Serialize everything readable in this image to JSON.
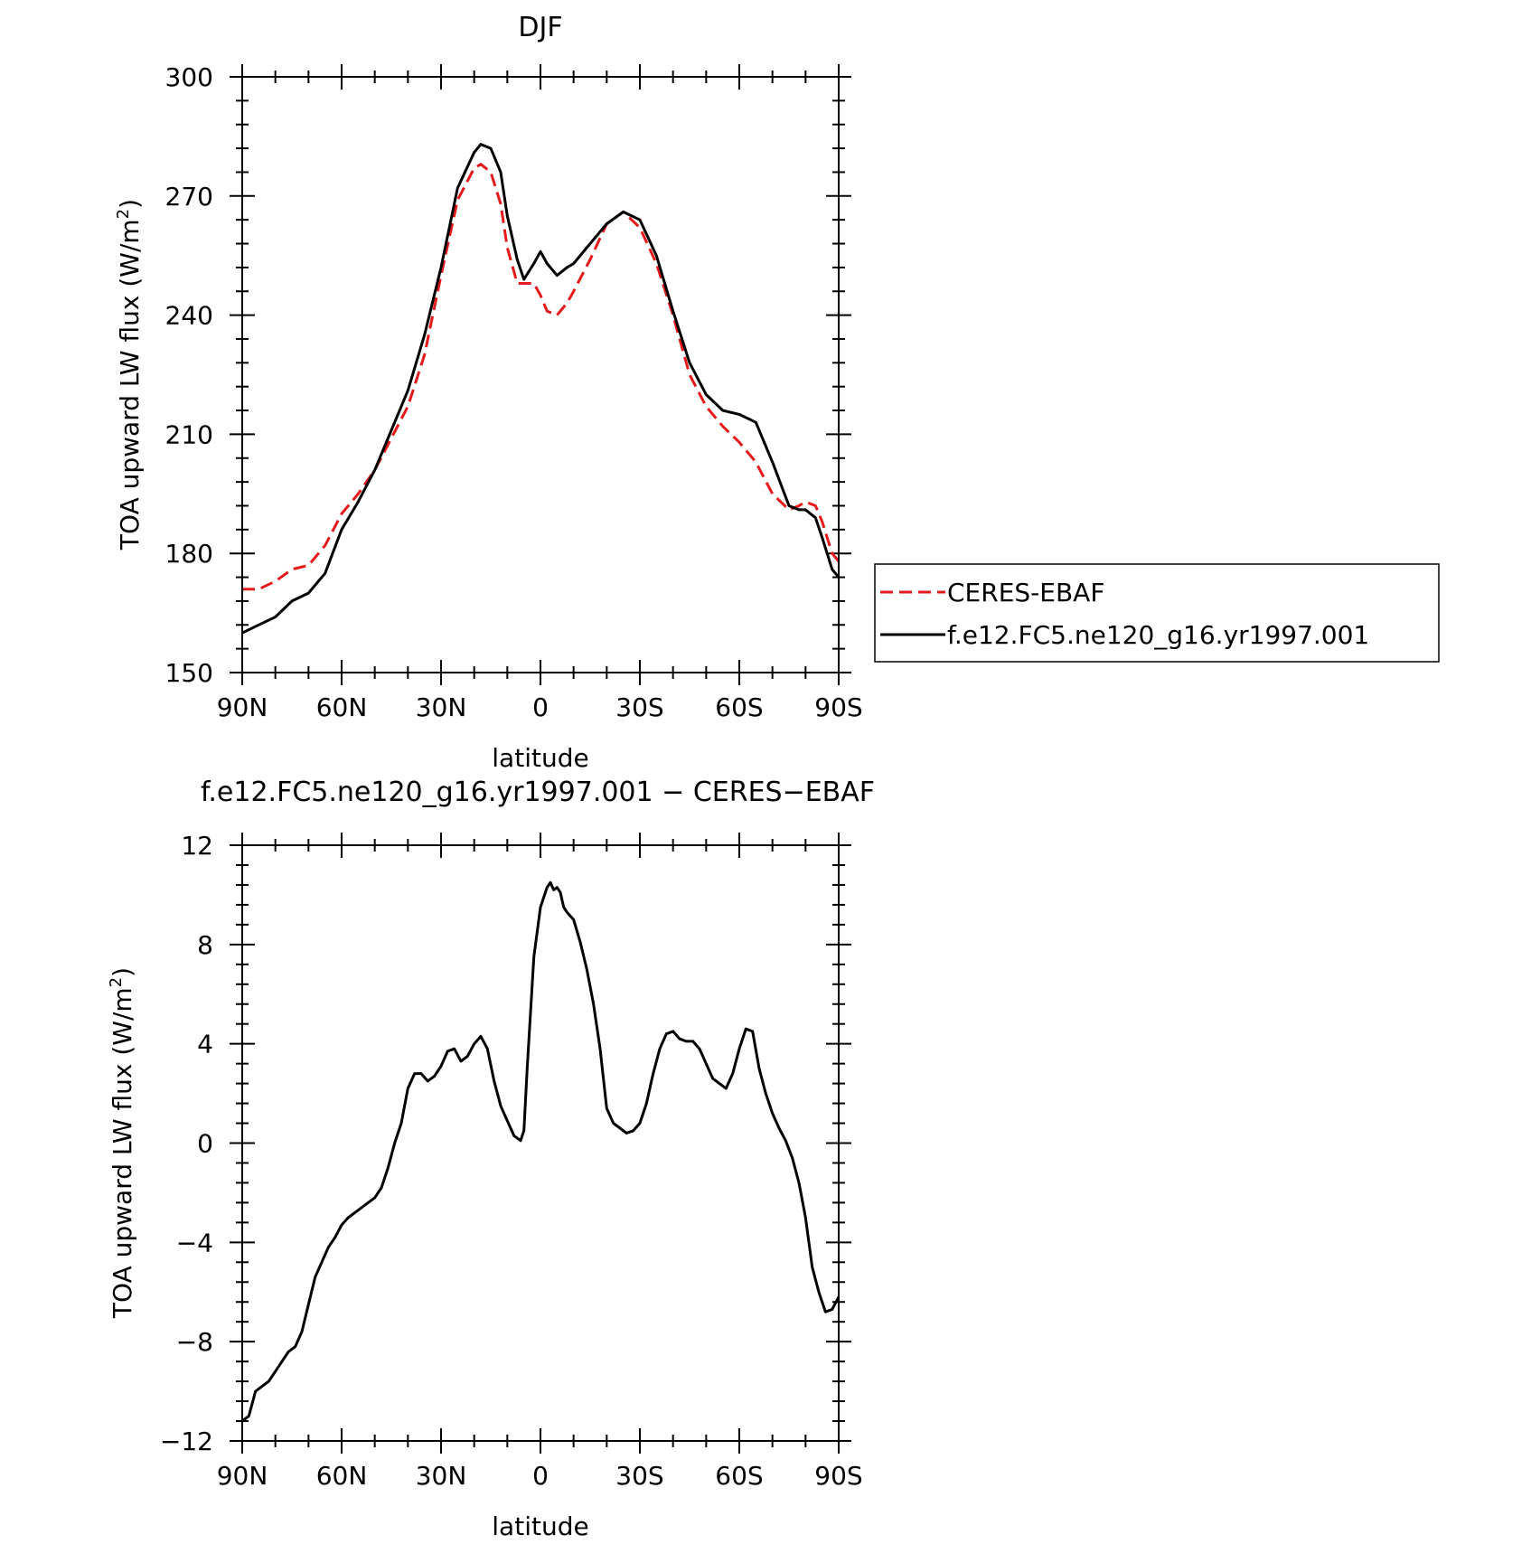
{
  "chart_data": [
    {
      "type": "line",
      "title": "DJF",
      "xlabel": "latitude",
      "ylabel_main": "TOA upward LW flux (W/m",
      "ylabel_sup": "2",
      "ylabel_end": ")",
      "xlim": [
        90,
        -90
      ],
      "ylim": [
        150,
        300
      ],
      "x_ticks": [
        {
          "value": 90,
          "label": "90N"
        },
        {
          "value": 60,
          "label": "60N"
        },
        {
          "value": 30,
          "label": "30N"
        },
        {
          "value": 0,
          "label": "0"
        },
        {
          "value": -30,
          "label": "30S"
        },
        {
          "value": -60,
          "label": "60S"
        },
        {
          "value": -90,
          "label": "90S"
        }
      ],
      "y_ticks": [
        {
          "value": 150,
          "label": "150"
        },
        {
          "value": 180,
          "label": "180"
        },
        {
          "value": 210,
          "label": "210"
        },
        {
          "value": 240,
          "label": "240"
        },
        {
          "value": 270,
          "label": "270"
        },
        {
          "value": 300,
          "label": "300"
        }
      ],
      "legend_position": "right",
      "series": [
        {
          "name": "CERES-EBAF",
          "color": "#e41a1c",
          "dashed": true,
          "x": [
            90,
            85,
            80,
            75,
            70,
            65,
            60,
            55,
            50,
            45,
            40,
            35,
            30,
            25,
            20,
            18,
            15,
            12,
            10,
            7,
            5,
            2,
            0,
            -2,
            -5,
            -8,
            -10,
            -15,
            -20,
            -25,
            -30,
            -35,
            -40,
            -45,
            -50,
            -55,
            -60,
            -65,
            -70,
            -75,
            -78,
            -80,
            -83,
            -85,
            -88,
            -90
          ],
          "y": [
            171,
            171,
            173,
            176,
            177,
            182,
            190,
            195,
            201,
            209,
            217,
            230,
            250,
            269,
            277,
            278,
            276,
            268,
            257,
            248,
            248,
            248,
            245,
            241,
            240,
            243,
            246,
            254,
            263,
            266,
            262,
            253,
            240,
            225,
            217,
            212,
            208,
            203,
            195,
            191,
            192,
            193,
            192,
            188,
            180,
            178
          ]
        },
        {
          "name": "f.e12.FC5.ne120_g16.yr1997.001",
          "color": "#000000",
          "dashed": false,
          "x": [
            90,
            85,
            80,
            75,
            70,
            65,
            60,
            55,
            50,
            45,
            40,
            35,
            30,
            25,
            20,
            18,
            15,
            12,
            10,
            7,
            5,
            2,
            0,
            -2,
            -5,
            -8,
            -10,
            -15,
            -20,
            -25,
            -30,
            -35,
            -40,
            -45,
            -50,
            -55,
            -60,
            -65,
            -70,
            -75,
            -78,
            -80,
            -83,
            -85,
            -88,
            -90
          ],
          "y": [
            160,
            162,
            164,
            168,
            170,
            175,
            186,
            193,
            201,
            211,
            221,
            235,
            252,
            272,
            281,
            283,
            282,
            276,
            265,
            254,
            249,
            253,
            256,
            253,
            250,
            252,
            253,
            258,
            263,
            266,
            264,
            255,
            241,
            228,
            220,
            216,
            215,
            213,
            203,
            192,
            191,
            191,
            189,
            184,
            176,
            174
          ]
        }
      ]
    },
    {
      "type": "line",
      "title": "f.e12.FC5.ne120_g16.yr1997.001 − CERES−EBAF",
      "xlabel": "latitude",
      "ylabel_main": "TOA upward LW flux (W/m",
      "ylabel_sup": "2",
      "ylabel_end": ")",
      "xlim": [
        90,
        -90
      ],
      "ylim": [
        -12,
        12
      ],
      "x_ticks": [
        {
          "value": 90,
          "label": "90N"
        },
        {
          "value": 60,
          "label": "60N"
        },
        {
          "value": 30,
          "label": "30N"
        },
        {
          "value": 0,
          "label": "0"
        },
        {
          "value": -30,
          "label": "30S"
        },
        {
          "value": -60,
          "label": "60S"
        },
        {
          "value": -90,
          "label": "90S"
        }
      ],
      "y_ticks": [
        {
          "value": -12,
          "label": "−12"
        },
        {
          "value": -8,
          "label": "−8"
        },
        {
          "value": -4,
          "label": "−4"
        },
        {
          "value": 0,
          "label": "0"
        },
        {
          "value": 4,
          "label": "4"
        },
        {
          "value": 8,
          "label": "8"
        },
        {
          "value": 12,
          "label": "12"
        }
      ],
      "series": [
        {
          "name": "",
          "color": "#000000",
          "dashed": false,
          "x": [
            90,
            88,
            86,
            84,
            82,
            80,
            78,
            76,
            74,
            72,
            70,
            68,
            66,
            64,
            62,
            60,
            58,
            56,
            54,
            52,
            50,
            48,
            46,
            44,
            42,
            40,
            38,
            36,
            34,
            32,
            30,
            28,
            26,
            24,
            22,
            20,
            18,
            16,
            14,
            12,
            10,
            8,
            6,
            5,
            4,
            2,
            0,
            -2,
            -3,
            -4,
            -5,
            -6,
            -7,
            -8,
            -10,
            -12,
            -14,
            -16,
            -18,
            -20,
            -22,
            -24,
            -26,
            -28,
            -30,
            -32,
            -34,
            -36,
            -38,
            -40,
            -42,
            -44,
            -46,
            -48,
            -50,
            -52,
            -54,
            -56,
            -58,
            -60,
            -62,
            -64,
            -66,
            -68,
            -70,
            -72,
            -74,
            -76,
            -78,
            -80,
            -82,
            -84,
            -86,
            -88,
            -90
          ],
          "y": [
            -11.2,
            -11.0,
            -10.0,
            -9.8,
            -9.6,
            -9.2,
            -8.8,
            -8.4,
            -8.2,
            -7.6,
            -6.5,
            -5.4,
            -4.8,
            -4.2,
            -3.8,
            -3.3,
            -3.0,
            -2.8,
            -2.6,
            -2.4,
            -2.2,
            -1.8,
            -1.0,
            0.0,
            0.8,
            2.2,
            2.8,
            2.8,
            2.5,
            2.7,
            3.1,
            3.7,
            3.8,
            3.3,
            3.5,
            4.0,
            4.3,
            3.8,
            2.5,
            1.5,
            0.9,
            0.3,
            0.1,
            0.5,
            3.0,
            7.5,
            9.5,
            10.3,
            10.5,
            10.2,
            10.3,
            10.1,
            9.5,
            9.3,
            9.0,
            8.1,
            7.0,
            5.6,
            3.8,
            1.4,
            0.8,
            0.6,
            0.4,
            0.5,
            0.8,
            1.6,
            2.8,
            3.8,
            4.4,
            4.5,
            4.2,
            4.1,
            4.1,
            3.8,
            3.2,
            2.6,
            2.4,
            2.2,
            2.8,
            3.8,
            4.6,
            4.5,
            3.0,
            2.0,
            1.2,
            0.6,
            0.1,
            -0.6,
            -1.6,
            -3.0,
            -5.0,
            -6.0,
            -6.8,
            -6.7,
            -6.2
          ]
        }
      ]
    }
  ]
}
